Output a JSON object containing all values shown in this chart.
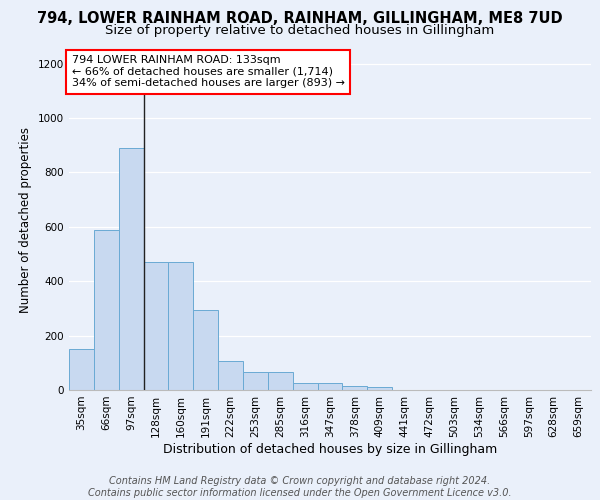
{
  "title1": "794, LOWER RAINHAM ROAD, RAINHAM, GILLINGHAM, ME8 7UD",
  "title2": "Size of property relative to detached houses in Gillingham",
  "xlabel": "Distribution of detached houses by size in Gillingham",
  "ylabel": "Number of detached properties",
  "categories": [
    "35sqm",
    "66sqm",
    "97sqm",
    "128sqm",
    "160sqm",
    "191sqm",
    "222sqm",
    "253sqm",
    "285sqm",
    "316sqm",
    "347sqm",
    "378sqm",
    "409sqm",
    "441sqm",
    "472sqm",
    "503sqm",
    "534sqm",
    "566sqm",
    "597sqm",
    "628sqm",
    "659sqm"
  ],
  "values": [
    150,
    590,
    890,
    470,
    470,
    295,
    105,
    65,
    65,
    25,
    25,
    15,
    10,
    0,
    0,
    0,
    0,
    0,
    0,
    0,
    0
  ],
  "bar_color": "#c8d9f0",
  "bar_edge_color": "#6aaad4",
  "vline_index": 2.5,
  "annotation_text": "794 LOWER RAINHAM ROAD: 133sqm\n← 66% of detached houses are smaller (1,714)\n34% of semi-detached houses are larger (893) →",
  "annotation_box_color": "white",
  "annotation_box_edge": "red",
  "ylim": [
    0,
    1250
  ],
  "yticks": [
    0,
    200,
    400,
    600,
    800,
    1000,
    1200
  ],
  "footer_text": "Contains HM Land Registry data © Crown copyright and database right 2024.\nContains public sector information licensed under the Open Government Licence v3.0.",
  "bg_color": "#eaf0fa",
  "grid_color": "white",
  "title1_fontsize": 10.5,
  "title2_fontsize": 9.5,
  "xlabel_fontsize": 9,
  "ylabel_fontsize": 8.5,
  "tick_fontsize": 7.5,
  "annotation_fontsize": 8,
  "footer_fontsize": 7
}
